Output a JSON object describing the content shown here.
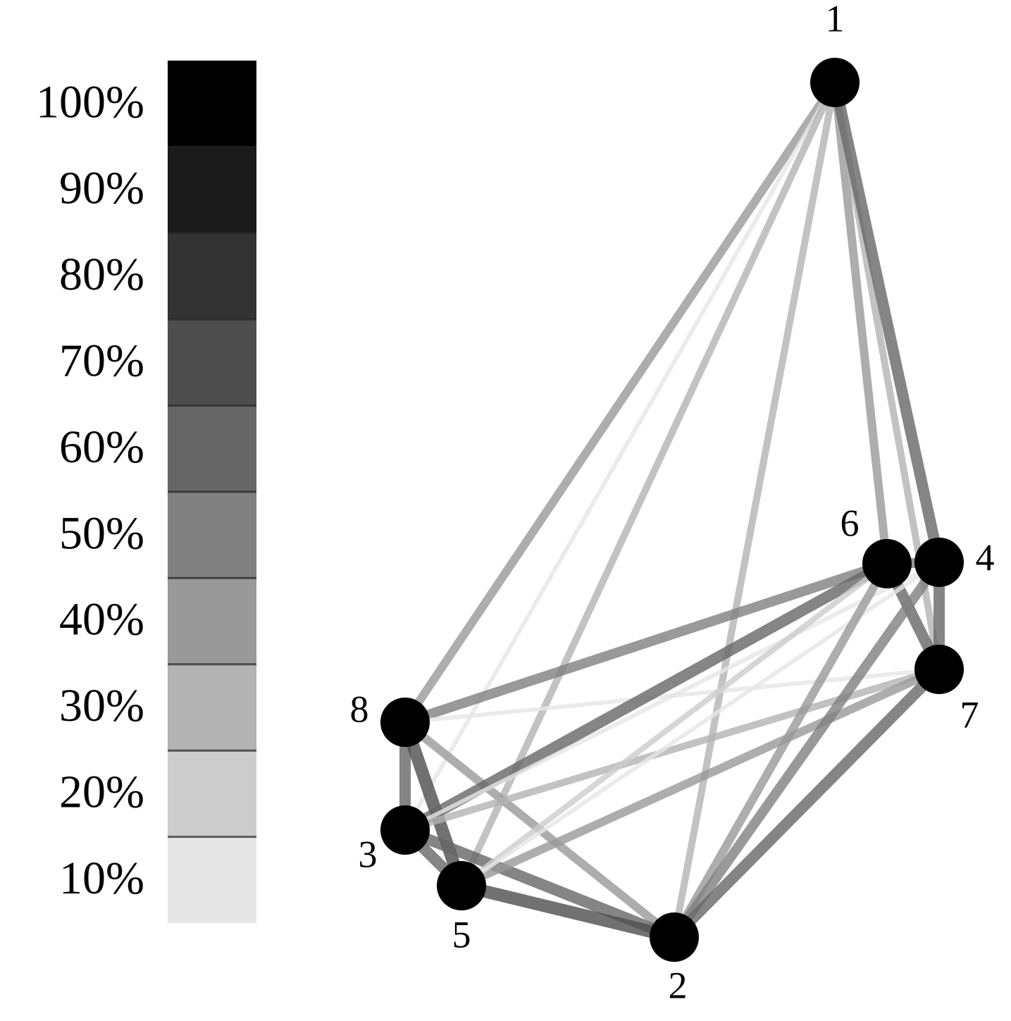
{
  "legend": [
    {
      "label": "100%",
      "color": "#000000"
    },
    {
      "label": "90%",
      "color": "#1a1a1a"
    },
    {
      "label": "80%",
      "color": "#333333"
    },
    {
      "label": "70%",
      "color": "#4d4d4d"
    },
    {
      "label": "60%",
      "color": "#666666"
    },
    {
      "label": "50%",
      "color": "#808080"
    },
    {
      "label": "40%",
      "color": "#999999"
    },
    {
      "label": "30%",
      "color": "#b3b3b3"
    },
    {
      "label": "20%",
      "color": "#cccccc"
    },
    {
      "label": "10%",
      "color": "#e6e6e6"
    }
  ],
  "nodes": [
    {
      "label": "1"
    },
    {
      "label": "2"
    },
    {
      "label": "3"
    },
    {
      "label": "4"
    },
    {
      "label": "5"
    },
    {
      "label": "6"
    },
    {
      "label": "7"
    },
    {
      "label": "8"
    }
  ],
  "edges": [
    {
      "source": 0,
      "target": 7,
      "weight": 40
    },
    {
      "source": 0,
      "target": 2,
      "weight": 10
    },
    {
      "source": 0,
      "target": 4,
      "weight": 30
    },
    {
      "source": 0,
      "target": 1,
      "weight": 30
    },
    {
      "source": 0,
      "target": 5,
      "weight": 40
    },
    {
      "source": 0,
      "target": 6,
      "weight": 30
    },
    {
      "source": 0,
      "target": 3,
      "weight": 60
    },
    {
      "source": 5,
      "target": 3,
      "weight": 50
    },
    {
      "source": 3,
      "target": 6,
      "weight": 60
    },
    {
      "source": 5,
      "target": 6,
      "weight": 60
    },
    {
      "source": 7,
      "target": 5,
      "weight": 50
    },
    {
      "source": 7,
      "target": 6,
      "weight": 10
    },
    {
      "source": 7,
      "target": 2,
      "weight": 60
    },
    {
      "source": 7,
      "target": 4,
      "weight": 70
    },
    {
      "source": 7,
      "target": 1,
      "weight": 40
    },
    {
      "source": 2,
      "target": 5,
      "weight": 60
    },
    {
      "source": 2,
      "target": 3,
      "weight": 10
    },
    {
      "source": 2,
      "target": 6,
      "weight": 30
    },
    {
      "source": 2,
      "target": 4,
      "weight": 60
    },
    {
      "source": 2,
      "target": 1,
      "weight": 60
    },
    {
      "source": 4,
      "target": 1,
      "weight": 70
    },
    {
      "source": 4,
      "target": 5,
      "weight": 20
    },
    {
      "source": 4,
      "target": 6,
      "weight": 40
    },
    {
      "source": 4,
      "target": 3,
      "weight": 10
    },
    {
      "source": 1,
      "target": 5,
      "weight": 40
    },
    {
      "source": 1,
      "target": 3,
      "weight": 50
    },
    {
      "source": 1,
      "target": 6,
      "weight": 60
    }
  ]
}
